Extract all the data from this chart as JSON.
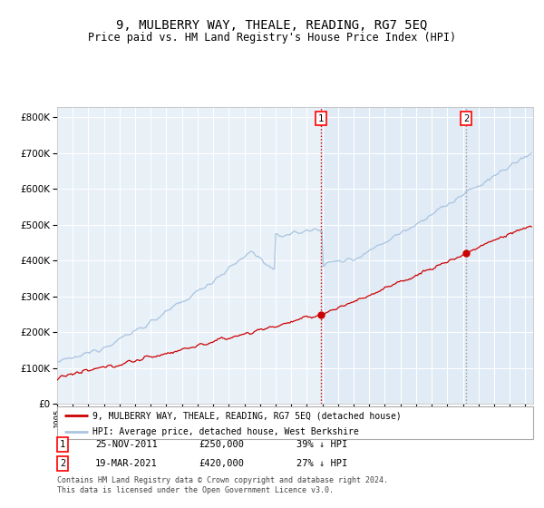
{
  "title": "9, MULBERRY WAY, THEALE, READING, RG7 5EQ",
  "subtitle": "Price paid vs. HM Land Registry's House Price Index (HPI)",
  "title_fontsize": 10,
  "subtitle_fontsize": 8.5,
  "ylabel_ticks": [
    "£0",
    "£100K",
    "£200K",
    "£300K",
    "£400K",
    "£500K",
    "£600K",
    "£700K",
    "£800K"
  ],
  "ytick_vals": [
    0,
    100000,
    200000,
    300000,
    400000,
    500000,
    600000,
    700000,
    800000
  ],
  "ylim": [
    0,
    830000
  ],
  "xlim_start": 1995.0,
  "xlim_end": 2025.5,
  "hpi_color": "#aac4e0",
  "price_color": "#cc0000",
  "transaction1_date": 2011.9,
  "transaction1_price": 250000,
  "transaction2_date": 2021.21,
  "transaction2_price": 420000,
  "legend_label1": "9, MULBERRY WAY, THEALE, READING, RG7 5EQ (detached house)",
  "legend_label2": "HPI: Average price, detached house, West Berkshire",
  "info1_num": "1",
  "info1_date": "25-NOV-2011",
  "info1_price": "£250,000",
  "info1_pct": "39% ↓ HPI",
  "info2_num": "2",
  "info2_date": "19-MAR-2021",
  "info2_price": "£420,000",
  "info2_pct": "27% ↓ HPI",
  "footnote1": "Contains HM Land Registry data © Crown copyright and database right 2024.",
  "footnote2": "This data is licensed under the Open Government Licence v3.0.",
  "background_plot": "#e8f0f8",
  "background_fig": "#ffffff",
  "grid_color": "#ffffff"
}
